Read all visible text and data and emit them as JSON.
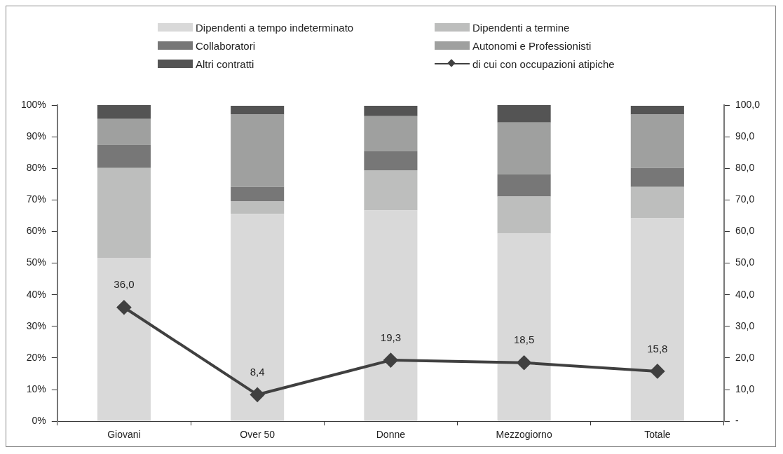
{
  "chart_data": {
    "type": "bar",
    "stacked": true,
    "categories": [
      "Giovani",
      "Over 50",
      "Donne",
      "Mezzogiorno",
      "Totale"
    ],
    "series": [
      {
        "name": "Dipendenti a tempo indeterminato",
        "color": "#d9d9d9",
        "values": [
          51.7,
          65.6,
          66.7,
          59.4,
          64.2
        ]
      },
      {
        "name": "Dipendenti a termine",
        "color": "#bdbebd",
        "values": [
          28.4,
          3.9,
          12.7,
          11.7,
          9.9
        ]
      },
      {
        "name": "Collaboratori",
        "color": "#777777",
        "values": [
          7.4,
          4.6,
          6.1,
          7.0,
          6.0
        ]
      },
      {
        "name": "Autonomi e Professionisti",
        "color": "#9fa09f",
        "values": [
          8.1,
          22.9,
          11.0,
          16.4,
          16.9
        ]
      },
      {
        "name": "Altri contratti",
        "color": "#545454",
        "values": [
          4.4,
          2.8,
          3.3,
          5.5,
          2.8
        ]
      },
      {
        "name": "di cui con occupazioni atipiche",
        "type": "line",
        "axis": "y2",
        "color": "#404040",
        "marker": "diamond",
        "values": [
          36.0,
          8.4,
          19.3,
          18.5,
          15.8
        ],
        "value_labels": [
          "36,0",
          "8,4",
          "19,3",
          "18,5",
          "15,8"
        ]
      }
    ],
    "ylim": [
      0,
      100
    ],
    "yticks": [
      {
        "value": 0,
        "label": "0%"
      },
      {
        "value": 10,
        "label": "10%"
      },
      {
        "value": 20,
        "label": "20%"
      },
      {
        "value": 30,
        "label": "30%"
      },
      {
        "value": 40,
        "label": "40%"
      },
      {
        "value": 50,
        "label": "50%"
      },
      {
        "value": 60,
        "label": "60%"
      },
      {
        "value": 70,
        "label": "70%"
      },
      {
        "value": 80,
        "label": "80%"
      },
      {
        "value": 90,
        "label": "90%"
      },
      {
        "value": 100,
        "label": "100%"
      }
    ],
    "y2lim": [
      0,
      100
    ],
    "y2ticks": [
      {
        "value": 0,
        "label": "-"
      },
      {
        "value": 10,
        "label": "10,0"
      },
      {
        "value": 20,
        "label": "20,0"
      },
      {
        "value": 30,
        "label": "30,0"
      },
      {
        "value": 40,
        "label": "40,0"
      },
      {
        "value": 50,
        "label": "50,0"
      },
      {
        "value": 60,
        "label": "60,0"
      },
      {
        "value": 70,
        "label": "70,0"
      },
      {
        "value": 80,
        "label": "80,0"
      },
      {
        "value": 90,
        "label": "90,0"
      },
      {
        "value": 100,
        "label": "100,0"
      }
    ],
    "grid": false,
    "legend": "top"
  }
}
